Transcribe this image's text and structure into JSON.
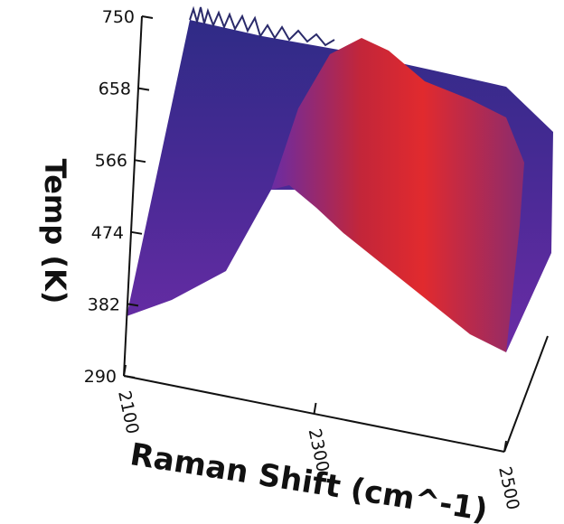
{
  "chart_data": {
    "type": "surface",
    "title": "",
    "xlabel": "Raman Shift (cm^-1)",
    "ylabel": "Temp (K)",
    "x_ticks": [
      "2100",
      "2300",
      "2500"
    ],
    "y_ticks": [
      "290",
      "382",
      "474",
      "566",
      "658",
      "750"
    ],
    "xlim": [
      2100,
      2500
    ],
    "ylim": [
      290,
      750
    ],
    "colormap": [
      "#2b2a78",
      "#5a2aa0",
      "#8b2b7a",
      "#c2263a",
      "#e02a2e"
    ],
    "series": [
      {
        "x": [
          2100,
          2140,
          2180,
          2200,
          2220,
          2240,
          2260,
          2280,
          2300,
          2320,
          2340,
          2360,
          2380,
          2400,
          2440,
          2480,
          2500
        ],
        "values": [
          382,
          390,
          410,
          440,
          470,
          520,
          560,
          580,
          560,
          540,
          520,
          500,
          480,
          460,
          430,
          400,
          385
        ]
      }
    ]
  }
}
